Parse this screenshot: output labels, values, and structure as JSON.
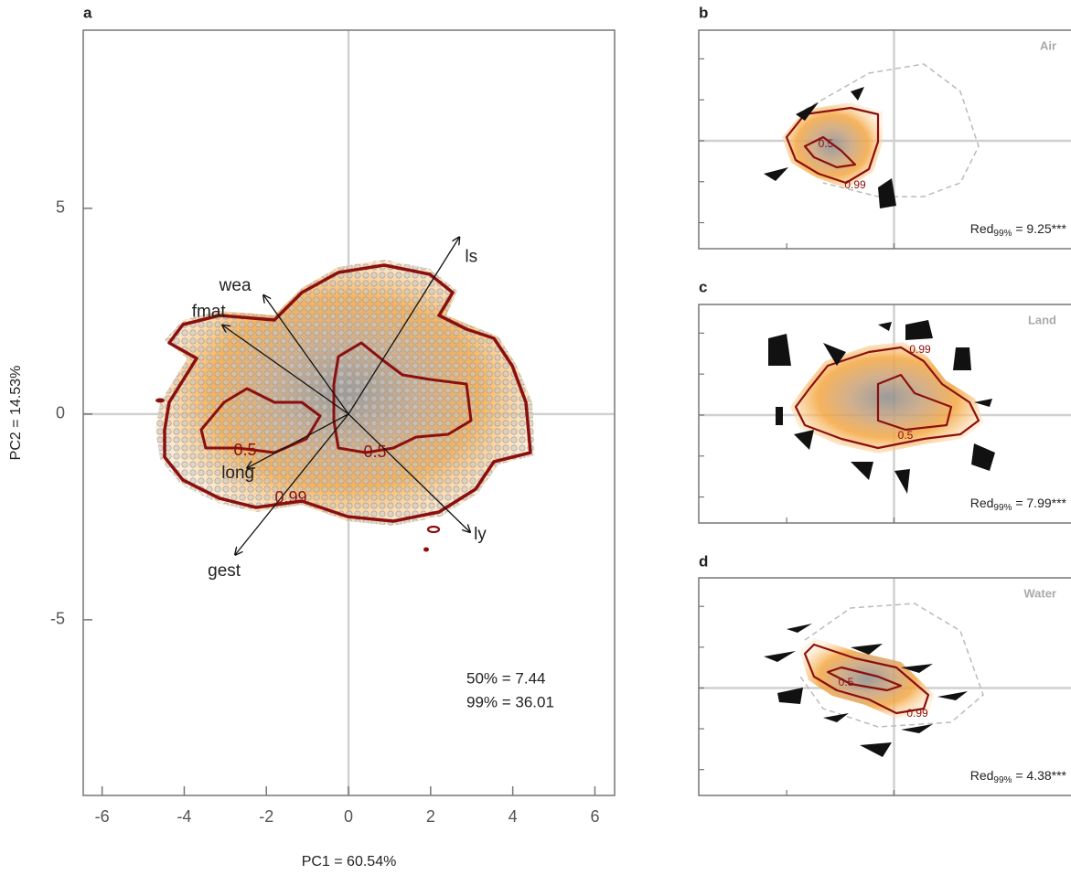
{
  "chart_data": [
    {
      "type": "biplot",
      "panel": "a",
      "xlabel": "PC1 = 60.54%",
      "ylabel": "PC2 = 14.53%",
      "xlim": [
        -6.46,
        6.48
      ],
      "ylim": [
        -9.27,
        9.33
      ],
      "xticks": [
        -6,
        -4,
        -2,
        0,
        2,
        4,
        6
      ],
      "yticks": [
        -5,
        0,
        5
      ],
      "loadings": {
        "names": [
          "ls",
          "wea",
          "fmat",
          "long",
          "gest",
          "ly"
        ],
        "x": [
          2.7,
          -2.07,
          -3.07,
          -2.47,
          -2.76,
          2.96
        ],
        "y": [
          4.3,
          2.89,
          2.16,
          -1.31,
          -3.42,
          -2.87
        ]
      },
      "contour_labels": [
        "0.5",
        "0.5",
        "0.99"
      ],
      "annotations": [
        "50% = 7.44",
        "99% = 36.01"
      ]
    },
    {
      "type": "density",
      "panel": "b",
      "title": "Air",
      "xlim": [
        -9.1,
        9.06
      ],
      "ylim": [
        -5.27,
        5.4
      ],
      "xticks": [
        -5,
        0
      ],
      "yticks": [
        -4,
        -2,
        0,
        2,
        4
      ],
      "contour_labels": [
        "0.5",
        "0.99"
      ],
      "stat": {
        "label": "Red",
        "subscript": "99%",
        "value": " = 9.25***"
      }
    },
    {
      "type": "density",
      "panel": "c",
      "title": "Land",
      "xlim": [
        -9.1,
        9.06
      ],
      "ylim": [
        -5.27,
        5.4
      ],
      "xticks": [
        -5,
        0
      ],
      "yticks": [
        -4,
        -2,
        0,
        2,
        4
      ],
      "contour_labels": [
        "0.99",
        "0.5"
      ],
      "stat": {
        "label": "Red",
        "subscript": "99%",
        "value": " = 7.99***"
      }
    },
    {
      "type": "density",
      "panel": "d",
      "title": "Water",
      "xlim": [
        -9.1,
        9.06
      ],
      "ylim": [
        -5.27,
        5.4
      ],
      "xticks": [
        -5,
        0
      ],
      "yticks": [
        -4,
        -2,
        0,
        2,
        4
      ],
      "contour_labels": [
        "0.5",
        "0.99"
      ],
      "stat": {
        "label": "Red",
        "subscript": "99%",
        "value": " = 4.38***"
      }
    }
  ]
}
